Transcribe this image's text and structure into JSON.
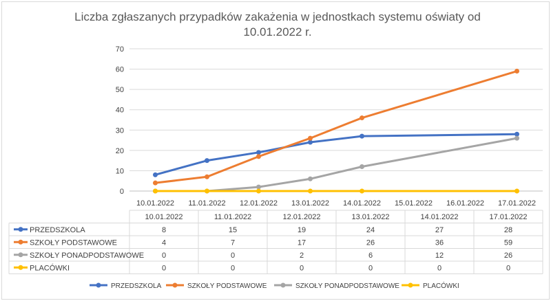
{
  "chart_data": {
    "type": "line",
    "title": "Liczba zgłaszanych przypadków zakażenia w jednostkach systemu oświaty od 10.01.2022 r.",
    "title_lines": [
      "Liczba zgłaszanych przypadków zakażenia w jednostkach systemu oświaty od",
      "10.01.2022 r."
    ],
    "x": [
      "10.01.2022",
      "11.01.2022",
      "12.01.2022",
      "13.01.2022",
      "14.01.2022",
      "15.01.2022",
      "16.01.2022",
      "17.01.2022"
    ],
    "table_dates": [
      "10.01.2022",
      "11.01.2022",
      "12.01.2022",
      "13.01.2022",
      "14.01.2022",
      "17.01.2022"
    ],
    "ylim": [
      0,
      70
    ],
    "yticks": [
      0,
      10,
      20,
      30,
      40,
      50,
      60,
      70
    ],
    "grid": true,
    "legend_position": "bottom",
    "data_table": true,
    "series": [
      {
        "name": "PRZEDSZKOLA",
        "color": "#4472c4",
        "x": [
          "10.01.2022",
          "11.01.2022",
          "12.01.2022",
          "13.01.2022",
          "14.01.2022",
          "17.01.2022"
        ],
        "values": [
          8,
          15,
          19,
          24,
          27,
          28
        ]
      },
      {
        "name": "SZKOŁY PODSTAWOWE",
        "color": "#ed7d31",
        "x": [
          "10.01.2022",
          "11.01.2022",
          "12.01.2022",
          "13.01.2022",
          "14.01.2022",
          "17.01.2022"
        ],
        "values": [
          4,
          7,
          17,
          26,
          36,
          59
        ]
      },
      {
        "name": "SZKOŁY PONADPODSTAWOWE",
        "color": "#a5a5a5",
        "x": [
          "10.01.2022",
          "11.01.2022",
          "12.01.2022",
          "13.01.2022",
          "14.01.2022",
          "17.01.2022"
        ],
        "values": [
          0,
          0,
          2,
          6,
          12,
          26
        ]
      },
      {
        "name": "PLACÓWKI",
        "color": "#ffc000",
        "x": [
          "10.01.2022",
          "11.01.2022",
          "12.01.2022",
          "13.01.2022",
          "14.01.2022",
          "17.01.2022"
        ],
        "values": [
          0,
          0,
          0,
          0,
          0,
          0
        ]
      }
    ]
  }
}
